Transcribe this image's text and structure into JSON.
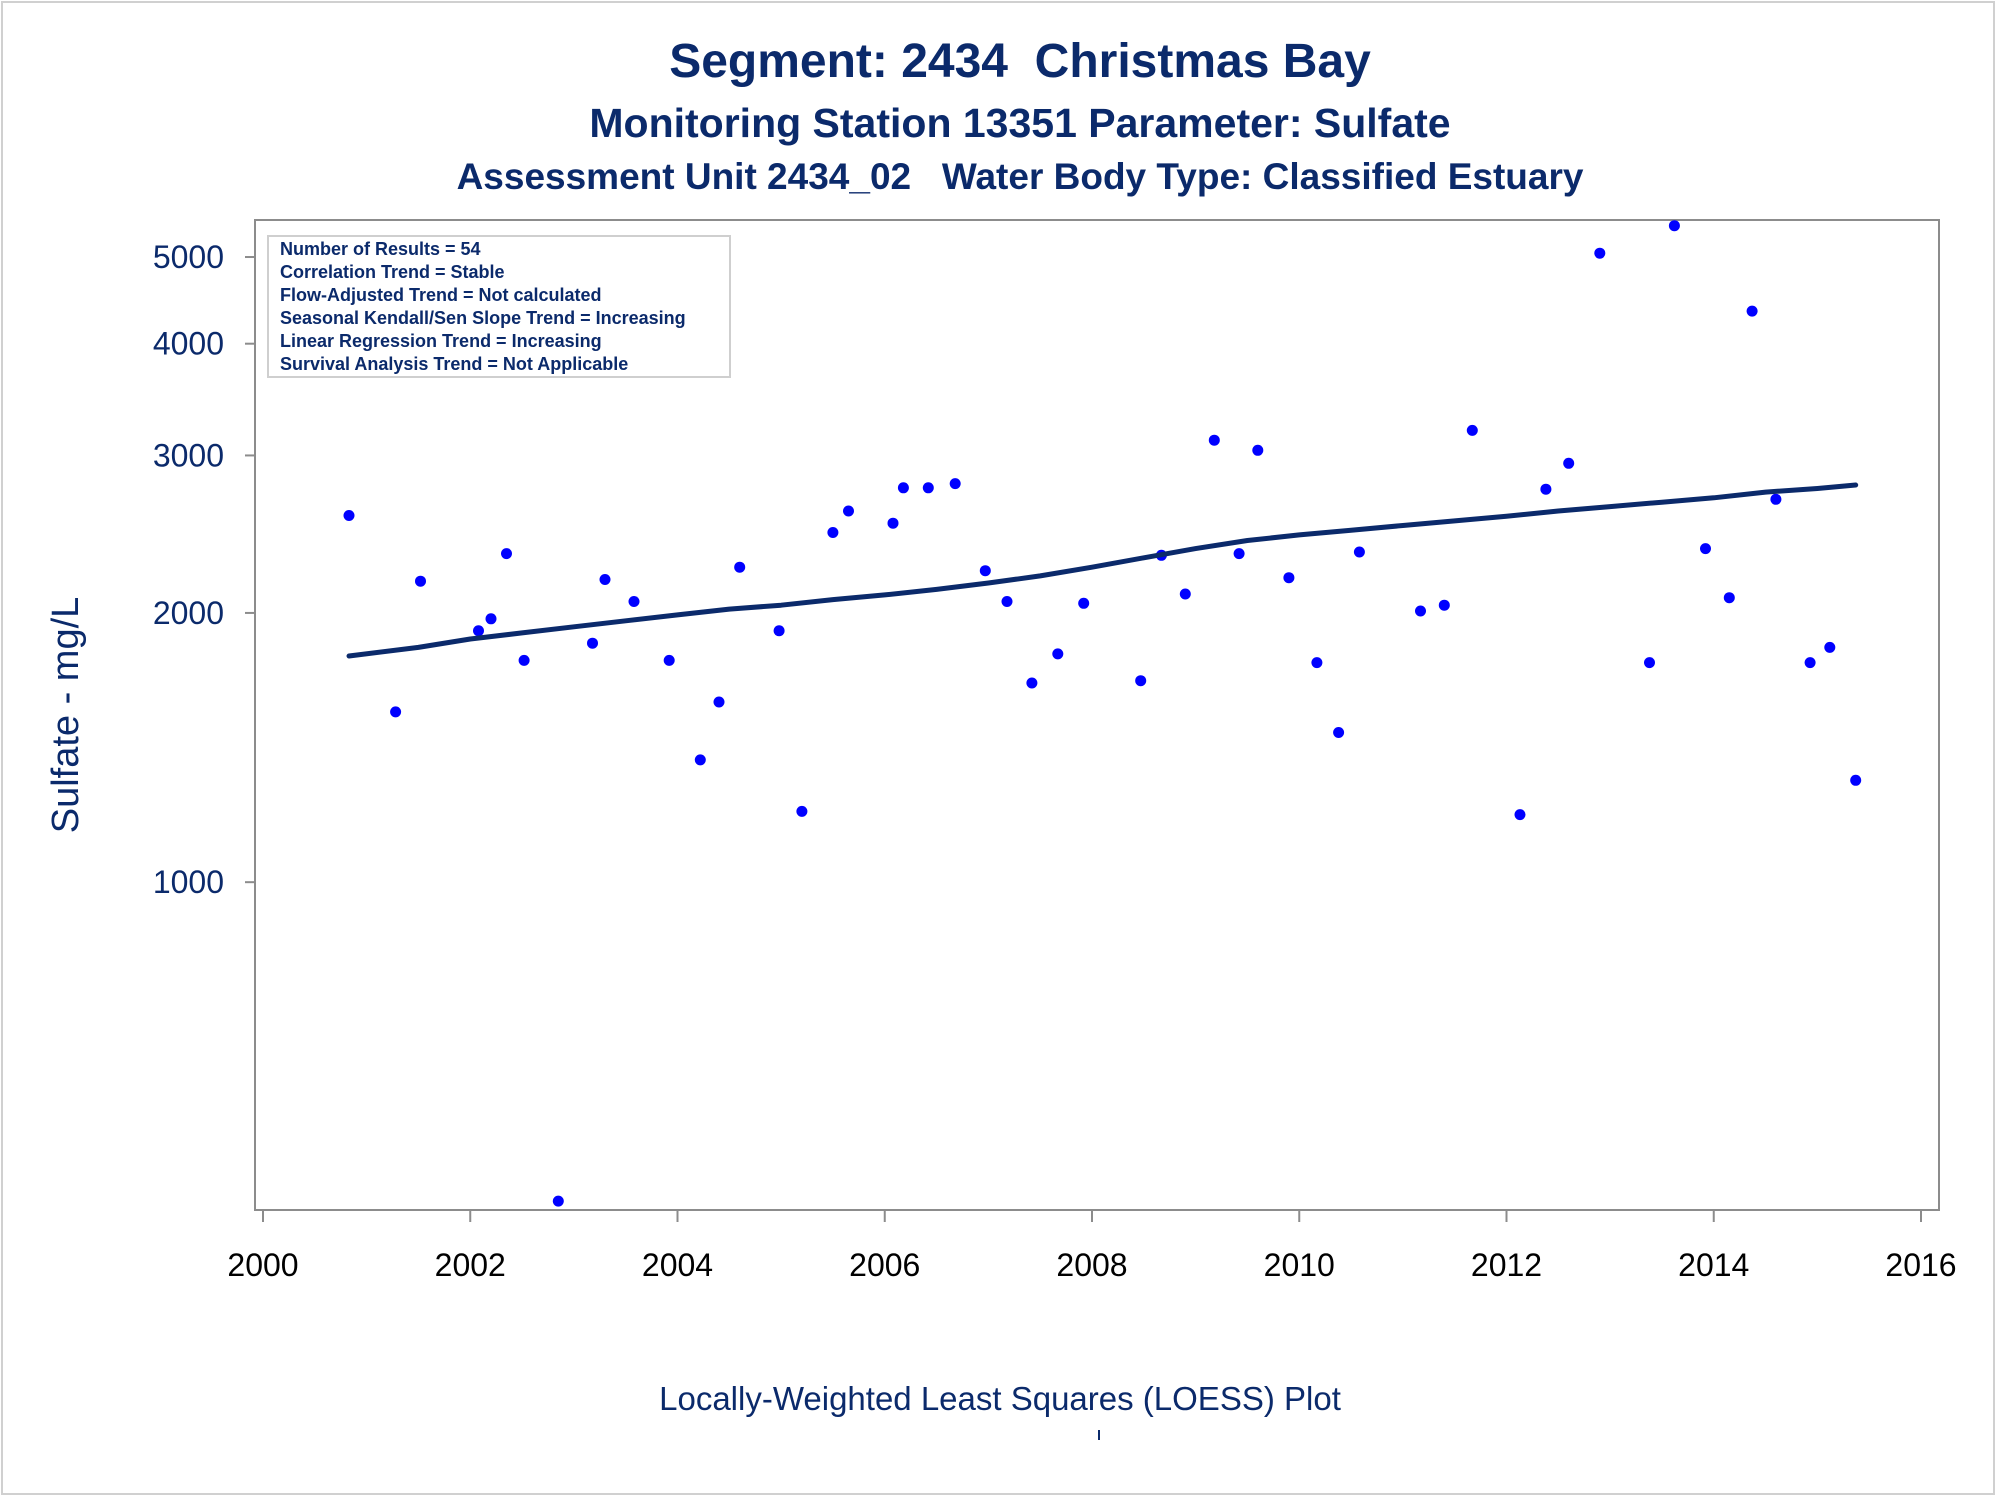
{
  "chart_data": {
    "type": "scatter",
    "title": "Segment: 2434  Christmas Bay",
    "subtitle": "Monitoring Station 13351 Parameter: Sulfate",
    "subtitle2": "Assessment Unit 2434_02   Water Body Type: Classified Estuary",
    "ylabel": "Sulfate - mg/L",
    "xlabel": "",
    "footnote": "Locally-Weighted Least Squares (LOESS) Plot",
    "y_scale": "log",
    "xlim": [
      2000,
      2016
    ],
    "ylim": [
      430,
      5500
    ],
    "x_ticks": [
      2000,
      2002,
      2004,
      2006,
      2008,
      2010,
      2012,
      2014,
      2016
    ],
    "y_ticks": [
      1000,
      2000,
      3000,
      4000,
      5000
    ],
    "grid": false,
    "legend": "none",
    "stats_box": [
      "Number of Results = 54",
      "Correlation Trend = Stable",
      "Flow-Adjusted Trend = Not calculated",
      "Seasonal Kendall/Sen Slope Trend = Increasing",
      "Linear Regression Trend = Increasing",
      "Survival Analysis Trend = Not Applicable"
    ],
    "series": [
      {
        "type": "scatter",
        "color": "#0000ff",
        "points": [
          [
            2000.83,
            2570
          ],
          [
            2001.28,
            1550
          ],
          [
            2001.52,
            2170
          ],
          [
            2002.08,
            1910
          ],
          [
            2002.2,
            1970
          ],
          [
            2002.35,
            2330
          ],
          [
            2002.52,
            1770
          ],
          [
            2002.85,
            440
          ],
          [
            2003.18,
            1850
          ],
          [
            2003.3,
            2180
          ],
          [
            2003.58,
            2060
          ],
          [
            2003.92,
            1770
          ],
          [
            2004.22,
            1370
          ],
          [
            2004.4,
            1590
          ],
          [
            2004.6,
            2250
          ],
          [
            2004.98,
            1910
          ],
          [
            2005.2,
            1200
          ],
          [
            2005.5,
            2460
          ],
          [
            2005.65,
            2600
          ],
          [
            2006.08,
            2520
          ],
          [
            2006.18,
            2760
          ],
          [
            2006.42,
            2760
          ],
          [
            2006.68,
            2790
          ],
          [
            2006.97,
            2230
          ],
          [
            2007.18,
            2060
          ],
          [
            2007.42,
            1670
          ],
          [
            2007.67,
            1800
          ],
          [
            2007.92,
            2050
          ],
          [
            2008.47,
            1680
          ],
          [
            2008.67,
            2320
          ],
          [
            2008.9,
            2100
          ],
          [
            2009.18,
            3120
          ],
          [
            2009.42,
            2330
          ],
          [
            2009.6,
            3040
          ],
          [
            2009.9,
            2190
          ],
          [
            2010.17,
            1760
          ],
          [
            2010.38,
            1470
          ],
          [
            2010.58,
            2340
          ],
          [
            2011.17,
            2010
          ],
          [
            2011.4,
            2040
          ],
          [
            2011.67,
            3200
          ],
          [
            2012.13,
            1190
          ],
          [
            2012.38,
            2750
          ],
          [
            2012.6,
            2940
          ],
          [
            2012.9,
            5050
          ],
          [
            2013.38,
            1760
          ],
          [
            2013.62,
            5420
          ],
          [
            2013.92,
            2360
          ],
          [
            2014.15,
            2080
          ],
          [
            2014.37,
            4350
          ],
          [
            2014.6,
            2680
          ],
          [
            2014.93,
            1760
          ],
          [
            2015.12,
            1830
          ],
          [
            2015.37,
            1300
          ]
        ]
      },
      {
        "type": "line",
        "name": "",
        "color": "#0b2a6b",
        "points": [
          [
            2000.83,
            1790
          ],
          [
            2001.5,
            1830
          ],
          [
            2002.0,
            1870
          ],
          [
            2002.5,
            1900
          ],
          [
            2003.0,
            1930
          ],
          [
            2003.5,
            1960
          ],
          [
            2004.0,
            1990
          ],
          [
            2004.5,
            2020
          ],
          [
            2005.0,
            2040
          ],
          [
            2005.5,
            2070
          ],
          [
            2006.0,
            2095
          ],
          [
            2006.5,
            2125
          ],
          [
            2007.0,
            2160
          ],
          [
            2007.5,
            2200
          ],
          [
            2008.0,
            2250
          ],
          [
            2008.5,
            2305
          ],
          [
            2009.0,
            2360
          ],
          [
            2009.5,
            2410
          ],
          [
            2010.0,
            2445
          ],
          [
            2010.5,
            2475
          ],
          [
            2011.0,
            2505
          ],
          [
            2011.5,
            2535
          ],
          [
            2012.0,
            2565
          ],
          [
            2012.5,
            2600
          ],
          [
            2013.0,
            2630
          ],
          [
            2013.5,
            2660
          ],
          [
            2014.0,
            2690
          ],
          [
            2014.5,
            2730
          ],
          [
            2015.0,
            2755
          ],
          [
            2015.37,
            2780
          ]
        ]
      }
    ]
  }
}
